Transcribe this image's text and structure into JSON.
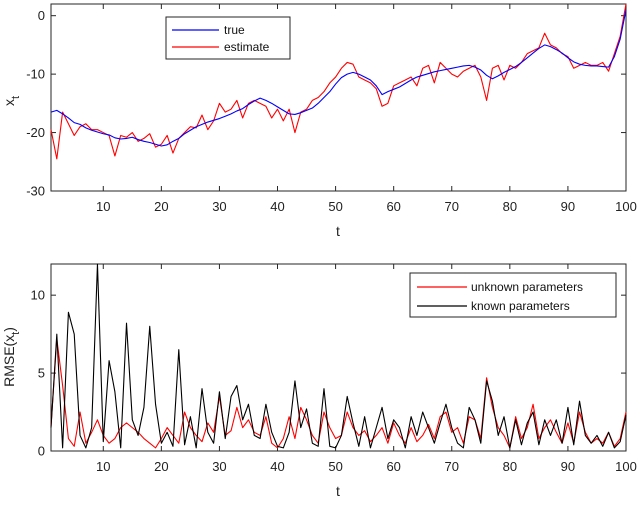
{
  "chart_data": [
    {
      "type": "line",
      "xlabel": "t",
      "ylabel": "x",
      "ylabel_sub": "t",
      "xlim": [
        1,
        100
      ],
      "ylim": [
        -30,
        2
      ],
      "xticks": [
        10,
        20,
        30,
        40,
        50,
        60,
        70,
        80,
        90,
        100
      ],
      "yticks": [
        0,
        -10,
        -20,
        -30
      ],
      "legend_position": "top-left",
      "series": [
        {
          "name": "true",
          "color": "#0000ff",
          "x": [
            1,
            2,
            3,
            4,
            5,
            6,
            7,
            8,
            9,
            10,
            11,
            12,
            13,
            14,
            15,
            16,
            17,
            18,
            19,
            20,
            21,
            22,
            23,
            24,
            25,
            26,
            27,
            28,
            29,
            30,
            31,
            32,
            33,
            34,
            35,
            36,
            37,
            38,
            39,
            40,
            41,
            42,
            43,
            44,
            45,
            46,
            47,
            48,
            49,
            50,
            51,
            52,
            53,
            54,
            55,
            56,
            57,
            58,
            59,
            60,
            61,
            62,
            63,
            64,
            65,
            66,
            67,
            68,
            69,
            70,
            71,
            72,
            73,
            74,
            75,
            76,
            77,
            78,
            79,
            80,
            81,
            82,
            83,
            84,
            85,
            86,
            87,
            88,
            89,
            90,
            91,
            92,
            93,
            94,
            95,
            96,
            97,
            98,
            99,
            100
          ],
          "values": [
            -16.5,
            -16.2,
            -16.8,
            -17.5,
            -18.3,
            -18.6,
            -19.2,
            -19.6,
            -19.9,
            -20.2,
            -20.4,
            -20.9,
            -21.1,
            -21.0,
            -20.8,
            -21.2,
            -21.5,
            -21.7,
            -22.0,
            -22.3,
            -22.1,
            -21.5,
            -21.0,
            -20.2,
            -19.6,
            -19.0,
            -18.6,
            -18.2,
            -17.9,
            -17.6,
            -17.2,
            -16.8,
            -16.3,
            -15.9,
            -15.2,
            -14.6,
            -14.1,
            -14.5,
            -15.0,
            -15.6,
            -16.2,
            -16.8,
            -16.9,
            -16.6,
            -16.2,
            -15.8,
            -15.0,
            -14.0,
            -13.0,
            -11.7,
            -10.6,
            -10.0,
            -9.7,
            -10.0,
            -10.5,
            -11.0,
            -12.0,
            -13.5,
            -13.0,
            -12.6,
            -12.2,
            -11.6,
            -11.0,
            -10.5,
            -10.2,
            -9.9,
            -9.6,
            -9.4,
            -9.2,
            -9.0,
            -8.8,
            -8.6,
            -8.5,
            -8.8,
            -9.3,
            -10.2,
            -10.8,
            -10.3,
            -9.7,
            -9.2,
            -8.7,
            -8.0,
            -7.2,
            -6.4,
            -5.6,
            -5.0,
            -5.3,
            -5.8,
            -6.4,
            -7.2,
            -7.9,
            -8.3,
            -8.5,
            -8.6,
            -8.6,
            -8.7,
            -8.8,
            -7.0,
            -4.0,
            1.0
          ]
        },
        {
          "name": "estimate",
          "color": "#ff0000",
          "x": [
            1,
            2,
            3,
            4,
            5,
            6,
            7,
            8,
            9,
            10,
            11,
            12,
            13,
            14,
            15,
            16,
            17,
            18,
            19,
            20,
            21,
            22,
            23,
            24,
            25,
            26,
            27,
            28,
            29,
            30,
            31,
            32,
            33,
            34,
            35,
            36,
            37,
            38,
            39,
            40,
            41,
            42,
            43,
            44,
            45,
            46,
            47,
            48,
            49,
            50,
            51,
            52,
            53,
            54,
            55,
            56,
            57,
            58,
            59,
            60,
            61,
            62,
            63,
            64,
            65,
            66,
            67,
            68,
            69,
            70,
            71,
            72,
            73,
            74,
            75,
            76,
            77,
            78,
            79,
            80,
            81,
            82,
            83,
            84,
            85,
            86,
            87,
            88,
            89,
            90,
            91,
            92,
            93,
            94,
            95,
            96,
            97,
            98,
            99,
            100
          ],
          "values": [
            -19.5,
            -24.5,
            -16.5,
            -18.5,
            -20.5,
            -19.0,
            -18.5,
            -19.5,
            -19.5,
            -20.0,
            -20.5,
            -24.0,
            -20.5,
            -20.8,
            -20.0,
            -21.5,
            -21.0,
            -20.2,
            -22.5,
            -22.0,
            -20.5,
            -23.5,
            -21.0,
            -20.0,
            -19.0,
            -19.2,
            -17.0,
            -19.5,
            -18.0,
            -15.0,
            -16.5,
            -16.0,
            -14.5,
            -17.5,
            -15.0,
            -14.5,
            -15.0,
            -15.5,
            -17.5,
            -16.0,
            -18.0,
            -16.0,
            -20.0,
            -16.5,
            -16.0,
            -14.5,
            -14.0,
            -13.0,
            -11.5,
            -10.5,
            -9.0,
            -8.0,
            -8.3,
            -10.5,
            -11.0,
            -11.5,
            -12.5,
            -15.5,
            -15.0,
            -12.0,
            -11.5,
            -11.0,
            -10.5,
            -12.0,
            -9.0,
            -8.5,
            -11.5,
            -8.0,
            -9.0,
            -10.0,
            -10.5,
            -9.5,
            -9.0,
            -8.5,
            -10.5,
            -14.5,
            -9.0,
            -8.5,
            -11.0,
            -8.5,
            -9.0,
            -8.0,
            -6.5,
            -6.0,
            -5.5,
            -3.0,
            -5.0,
            -5.5,
            -6.5,
            -7.0,
            -9.0,
            -8.5,
            -8.0,
            -8.5,
            -8.5,
            -8.0,
            -9.5,
            -6.5,
            -3.5,
            2.0
          ]
        }
      ]
    },
    {
      "type": "line",
      "xlabel": "t",
      "ylabel": "RMSE(x",
      "ylabel_sub": "t",
      "ylabel_close": ")",
      "xlim": [
        1,
        100
      ],
      "ylim": [
        0,
        12
      ],
      "xticks": [
        10,
        20,
        30,
        40,
        50,
        60,
        70,
        80,
        90,
        100
      ],
      "yticks": [
        0,
        5,
        10
      ],
      "legend_position": "top-right",
      "series": [
        {
          "name": "unknown parameters",
          "color": "#ff0000",
          "x": [
            1,
            2,
            3,
            4,
            5,
            6,
            7,
            8,
            9,
            10,
            11,
            12,
            13,
            14,
            15,
            16,
            17,
            18,
            19,
            20,
            21,
            22,
            23,
            24,
            25,
            26,
            27,
            28,
            29,
            30,
            31,
            32,
            33,
            34,
            35,
            36,
            37,
            38,
            39,
            40,
            41,
            42,
            43,
            44,
            45,
            46,
            47,
            48,
            49,
            50,
            51,
            52,
            53,
            54,
            55,
            56,
            57,
            58,
            59,
            60,
            61,
            62,
            63,
            64,
            65,
            66,
            67,
            68,
            69,
            70,
            71,
            72,
            73,
            74,
            75,
            76,
            77,
            78,
            79,
            80,
            81,
            82,
            83,
            84,
            85,
            86,
            87,
            88,
            89,
            90,
            91,
            92,
            93,
            94,
            95,
            96,
            97,
            98,
            99,
            100
          ],
          "values": [
            1.6,
            7.2,
            4.2,
            0.8,
            0.3,
            2.5,
            0.5,
            1.2,
            2.0,
            1.0,
            0.5,
            0.8,
            1.5,
            1.8,
            1.5,
            1.2,
            0.8,
            0.5,
            0.2,
            0.8,
            1.5,
            1.0,
            0.5,
            2.5,
            1.5,
            1.0,
            0.6,
            1.8,
            1.2,
            3.5,
            1.0,
            1.3,
            2.8,
            1.5,
            2.0,
            1.2,
            1.0,
            2.2,
            0.5,
            0.2,
            0.8,
            2.2,
            0.8,
            2.8,
            2.0,
            1.0,
            0.5,
            2.5,
            1.5,
            0.8,
            1.0,
            2.5,
            1.5,
            1.0,
            1.3,
            0.6,
            1.0,
            1.5,
            0.5,
            1.8,
            1.0,
            0.5,
            1.5,
            0.6,
            1.0,
            1.7,
            0.8,
            2.2,
            2.5,
            1.2,
            1.5,
            0.5,
            2.2,
            2.0,
            0.8,
            4.7,
            2.8,
            1.5,
            1.0,
            0.2,
            2.2,
            0.8,
            1.5,
            3.0,
            0.8,
            1.5,
            2.0,
            1.2,
            0.5,
            1.8,
            0.5,
            2.5,
            1.2,
            0.5,
            0.8,
            0.5,
            1.2,
            0.3,
            0.8,
            2.5
          ]
        },
        {
          "name": "known parameters",
          "color": "#000000",
          "x": [
            1,
            2,
            3,
            4,
            5,
            6,
            7,
            8,
            9,
            10,
            11,
            12,
            13,
            14,
            15,
            16,
            17,
            18,
            19,
            20,
            21,
            22,
            23,
            24,
            25,
            26,
            27,
            28,
            29,
            30,
            31,
            32,
            33,
            34,
            35,
            36,
            37,
            38,
            39,
            40,
            41,
            42,
            43,
            44,
            45,
            46,
            47,
            48,
            49,
            50,
            51,
            52,
            53,
            54,
            55,
            56,
            57,
            58,
            59,
            60,
            61,
            62,
            63,
            64,
            65,
            66,
            67,
            68,
            69,
            70,
            71,
            72,
            73,
            74,
            75,
            76,
            77,
            78,
            79,
            80,
            81,
            82,
            83,
            84,
            85,
            86,
            87,
            88,
            89,
            90,
            91,
            92,
            93,
            94,
            95,
            96,
            97,
            98,
            99,
            100
          ],
          "values": [
            1.5,
            7.5,
            0.2,
            8.9,
            7.5,
            1.0,
            0.2,
            1.5,
            12.0,
            0.6,
            5.8,
            3.8,
            0.2,
            8.2,
            2.0,
            1.0,
            2.8,
            8.0,
            3.0,
            0.5,
            1.2,
            0.3,
            6.5,
            0.4,
            2.2,
            0.2,
            4.0,
            1.2,
            0.5,
            3.8,
            0.8,
            3.5,
            4.2,
            2.0,
            3.0,
            1.0,
            0.8,
            3.0,
            1.2,
            0.3,
            0.2,
            1.2,
            4.5,
            1.5,
            2.7,
            0.5,
            0.3,
            4.0,
            0.3,
            0.2,
            1.0,
            3.5,
            1.8,
            0.3,
            2.2,
            0.2,
            1.5,
            2.8,
            0.8,
            2.0,
            1.5,
            0.2,
            2.2,
            1.0,
            2.5,
            1.5,
            0.5,
            1.8,
            3.0,
            1.5,
            0.5,
            0.2,
            2.8,
            2.0,
            0.5,
            4.5,
            3.2,
            1.0,
            2.2,
            0.2,
            2.0,
            0.4,
            1.8,
            2.5,
            0.4,
            2.0,
            1.0,
            2.0,
            0.5,
            2.8,
            0.4,
            3.2,
            1.0,
            0.5,
            1.0,
            0.3,
            1.2,
            0.2,
            0.6,
            2.3
          ]
        }
      ]
    }
  ]
}
